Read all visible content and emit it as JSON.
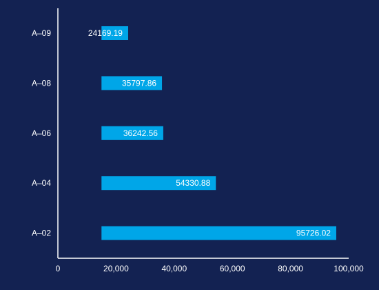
{
  "chart_data": {
    "type": "bar",
    "orientation": "horizontal",
    "categories": [
      "A–09",
      "A–08",
      "A–06",
      "A–04",
      "A–02"
    ],
    "values": [
      24169.19,
      35797.86,
      36242.56,
      54330.88,
      95726.02
    ],
    "value_labels": [
      "24169.19",
      "35797.86",
      "36242.56",
      "54330.88",
      "95726.02"
    ],
    "x_ticks": [
      0,
      20000,
      40000,
      60000,
      80000,
      100000
    ],
    "x_tick_labels": [
      "0",
      "20,000",
      "40,000",
      "60,000",
      "80,000",
      "100,000"
    ],
    "xlim": [
      0,
      100000
    ],
    "bar_start": 15000,
    "grid": false,
    "bar_color": "#00a6e8",
    "background_color": "#132252",
    "axis_color": "#ffffff"
  }
}
